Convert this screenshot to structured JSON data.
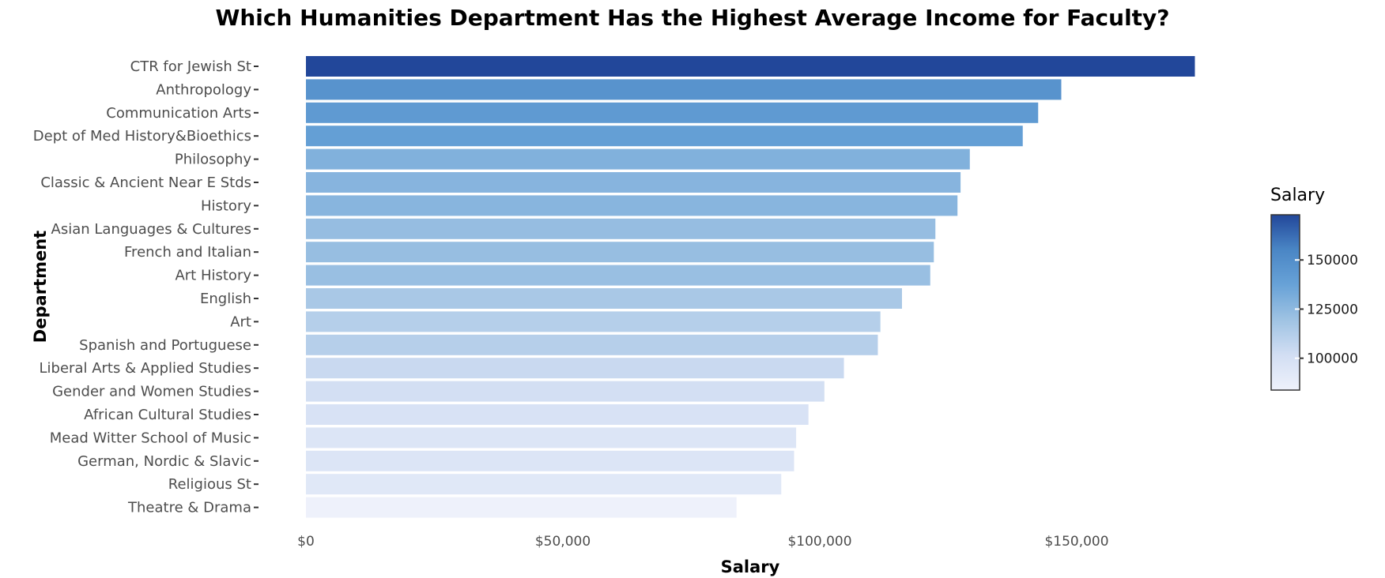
{
  "chart_data": {
    "type": "bar",
    "orientation": "horizontal",
    "title": "Which Humanities Department Has the Highest Average Income for Faculty?",
    "xlabel": "Salary",
    "ylabel": "Department",
    "xlim": [
      0,
      180000
    ],
    "x_ticks": [
      0,
      50000,
      100000,
      150000
    ],
    "x_tick_labels": [
      "$0",
      "$50,000",
      "$100,000",
      "$150,000"
    ],
    "categories": [
      "CTR for Jewish St",
      "Anthropology",
      "Communication Arts",
      "Dept of Med History&Bioethics",
      "Philosophy",
      "Classic & Ancient Near E Stds",
      "History",
      "Asian Languages & Cultures",
      "French and Italian",
      "Art History",
      "English",
      "Art",
      "Spanish and Portuguese",
      "Liberal Arts & Applied Studies",
      "Gender and Women Studies",
      "African Cultural Studies",
      "Mead Witter School of Music",
      "German, Nordic & Slavic",
      "Religious St",
      "Theatre & Drama"
    ],
    "values": [
      173000,
      147000,
      142500,
      139500,
      129200,
      127400,
      126800,
      122500,
      122200,
      121500,
      116000,
      111800,
      111300,
      104700,
      100900,
      97800,
      95400,
      95000,
      92500,
      83800
    ],
    "grid": false,
    "legend": {
      "title": "Salary",
      "position": "right",
      "type": "colorbar",
      "range": [
        83800,
        173000
      ],
      "ticks": [
        100000,
        125000,
        150000
      ],
      "tick_labels": [
        "100000",
        "125000",
        "150000"
      ],
      "color_low": "#eef1fb",
      "color_high": "#22479a"
    }
  },
  "colors": {
    "gradient": [
      "#eef1fb",
      "#d2def3",
      "#9fc3e3",
      "#68a2d7",
      "#4a86c5",
      "#22479a"
    ]
  }
}
